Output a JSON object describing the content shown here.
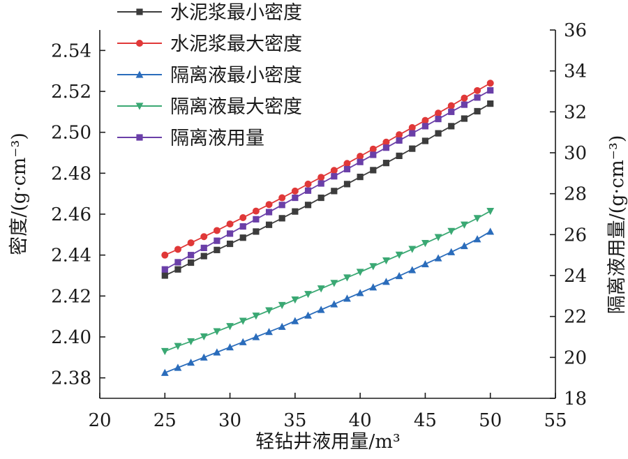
{
  "chart_data": {
    "type": "line",
    "xlabel": "轻钻井液用量/m³",
    "ylabel": "密度/(g·cm⁻³)",
    "y2label": "隔离液用量/(g·cm⁻³)",
    "xlim": [
      20,
      55
    ],
    "ylim": [
      2.37,
      2.55
    ],
    "y2lim": [
      18,
      36
    ],
    "x_ticks": [
      "20",
      "25",
      "30",
      "35",
      "40",
      "45",
      "50",
      "55"
    ],
    "y_ticks": [
      "2.38",
      "2.40",
      "2.42",
      "2.44",
      "2.46",
      "2.48",
      "2.50",
      "2.52",
      "2.54"
    ],
    "y2_ticks": [
      "18",
      "20",
      "22",
      "24",
      "26",
      "28",
      "30",
      "32",
      "34",
      "36"
    ],
    "grid": false,
    "legend_position": "top-left",
    "x": [
      25,
      26,
      27,
      28,
      29,
      30,
      31,
      32,
      33,
      34,
      35,
      36,
      37,
      38,
      39,
      40,
      41,
      42,
      43,
      44,
      45,
      46,
      47,
      48,
      49,
      50
    ],
    "series": [
      {
        "name": "水泥浆最小密度",
        "color": "#3c3c3c",
        "marker": "square",
        "axis": "left",
        "values": [
          2.43,
          2.433,
          2.4363,
          2.4395,
          2.4425,
          2.4455,
          2.4485,
          2.4515,
          2.4548,
          2.458,
          2.4613,
          2.4645,
          2.468,
          2.4713,
          2.4747,
          2.4782,
          2.4815,
          2.485,
          2.4885,
          2.492,
          2.4958,
          2.4995,
          2.503,
          2.5067,
          2.5103,
          2.514
        ]
      },
      {
        "name": "水泥浆最大密度",
        "color": "#e03838",
        "marker": "circle",
        "axis": "left",
        "values": [
          2.44,
          2.4428,
          2.446,
          2.449,
          2.452,
          2.4552,
          2.4583,
          2.4615,
          2.4647,
          2.468,
          2.4713,
          2.4747,
          2.478,
          2.4814,
          2.4848,
          2.4883,
          2.4918,
          2.4952,
          2.4988,
          2.5023,
          2.5058,
          2.5094,
          2.513,
          2.5167,
          2.5204,
          2.524
        ]
      },
      {
        "name": "隔离液最小密度",
        "color": "#2a6cbb",
        "marker": "triangle-up",
        "axis": "left",
        "values": [
          2.3825,
          2.385,
          2.3875,
          2.39,
          2.3925,
          2.395,
          2.3975,
          2.4,
          2.4025,
          2.405,
          2.4078,
          2.4105,
          2.4133,
          2.416,
          2.4188,
          2.4215,
          2.4243,
          2.427,
          2.4298,
          2.4327,
          2.4356,
          2.4385,
          2.4415,
          2.4445,
          2.4478,
          2.4515
        ]
      },
      {
        "name": "隔离液最大密度",
        "color": "#3aa873",
        "marker": "triangle-down",
        "axis": "left",
        "values": [
          2.393,
          2.3955,
          2.3978,
          2.4002,
          2.4027,
          2.4052,
          2.4078,
          2.4103,
          2.4129,
          2.4155,
          2.4182,
          2.4209,
          2.4236,
          2.4263,
          2.429,
          2.4317,
          2.4345,
          2.4373,
          2.4401,
          2.4429,
          2.4458,
          2.4487,
          2.4517,
          2.4548,
          2.458,
          2.4615
        ]
      },
      {
        "name": "隔离液用量",
        "color": "#6a3fa8",
        "marker": "square",
        "axis": "right",
        "values": [
          24.3,
          24.65,
          25.0,
          25.35,
          25.7,
          26.05,
          26.4,
          26.75,
          27.1,
          27.45,
          27.8,
          28.15,
          28.5,
          28.85,
          29.2,
          29.55,
          29.9,
          30.25,
          30.6,
          30.95,
          31.3,
          31.65,
          32.0,
          32.35,
          32.7,
          33.05
        ]
      }
    ]
  }
}
